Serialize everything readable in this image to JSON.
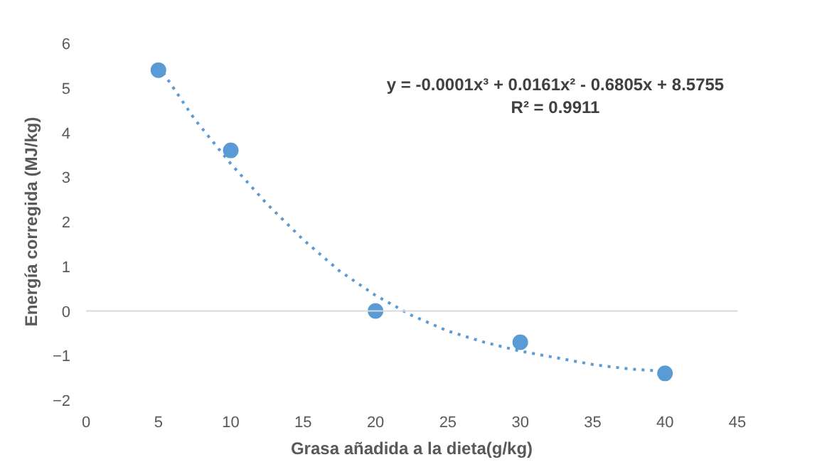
{
  "chart_data": {
    "type": "scatter",
    "xlabel": "Grasa añadida a la dieta(g/kg)",
    "ylabel": "Energía corregida (MJ/kg)",
    "x": [
      5,
      10,
      20,
      30,
      40
    ],
    "series": [
      {
        "color": "#5b9bd5",
        "marker": "circle",
        "values": [
          5.4,
          3.6,
          0.0,
          -0.7,
          -1.4
        ]
      },
      {
        "type": "line",
        "color": "#5b9bd5",
        "line_style": "dotted",
        "marker": "none",
        "x": [
          5,
          7.5,
          10,
          12.5,
          15,
          17.5,
          20,
          22.5,
          25,
          27.5,
          30,
          32.5,
          35,
          37.5,
          40
        ],
        "values": [
          5.5,
          4.3,
          3.3,
          2.4,
          1.6,
          0.9,
          0.35,
          -0.1,
          -0.45,
          -0.7,
          -0.9,
          -1.05,
          -1.2,
          -1.3,
          -1.35
        ]
      }
    ],
    "annotations": [
      "y = -0.0001x³ + 0.0161x² - 0.6805x + 8.5755",
      "R² = 0.9911"
    ],
    "xlim": [
      0,
      45
    ],
    "ylim": [
      -2,
      6
    ],
    "xticks": [
      0,
      5,
      10,
      15,
      20,
      25,
      30,
      35,
      40,
      45
    ],
    "yticks": [
      -2,
      -1,
      0,
      1,
      2,
      3,
      4,
      5,
      6
    ],
    "ref_lines": [
      {
        "axis": "y",
        "value": 0,
        "color": "#d9d9d9"
      }
    ],
    "grid": false
  }
}
